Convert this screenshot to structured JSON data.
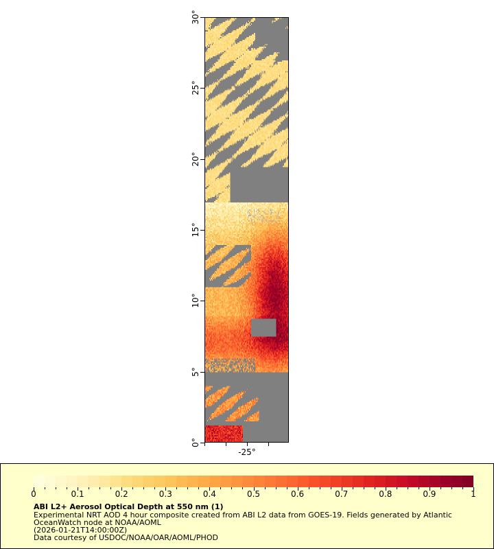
{
  "map": {
    "lat_range": [
      0,
      30
    ],
    "lon_tick_labels": [
      {
        "value": -25,
        "label": "-25°"
      }
    ],
    "lat_tick_labels": [
      {
        "value": 0,
        "label": "0°"
      },
      {
        "value": 5,
        "label": "5°"
      },
      {
        "value": 10,
        "label": "10°"
      },
      {
        "value": 15,
        "label": "15°"
      },
      {
        "value": 20,
        "label": "20°"
      },
      {
        "value": 25,
        "label": "25°"
      },
      {
        "value": 30,
        "label": "30°"
      }
    ],
    "no_data_color": "#808080",
    "land_color": "#b0b0b0"
  },
  "legend": {
    "colorbar_min": 0,
    "colorbar_max": 1,
    "tick_labels": [
      "0",
      "0.1",
      "0.2",
      "0.3",
      "0.4",
      "0.5",
      "0.6",
      "0.7",
      "0.8",
      "0.9",
      "1"
    ],
    "palette": [
      "#ffffe0",
      "#fff6c8",
      "#feeba4",
      "#fed976",
      "#fec45c",
      "#fead48",
      "#fd9440",
      "#fd7a36",
      "#fc5a2c",
      "#f03e26",
      "#e0221f",
      "#c60b26",
      "#a30028",
      "#800026"
    ],
    "title": "ABI L2+ Aerosol Optical Depth at 550 nm (1)",
    "line1": "Experimental NRT AOD 4 hour composite created from ABI L2 data from GOES-19. Fields generated by Atlantic",
    "line2": "OceanWatch node at NOAA/AOML",
    "line3": "(2026-01-21T14:00:00Z)",
    "line4": "Data courtesy of USDOC/NOAA/OAR/AOML/PHOD"
  }
}
